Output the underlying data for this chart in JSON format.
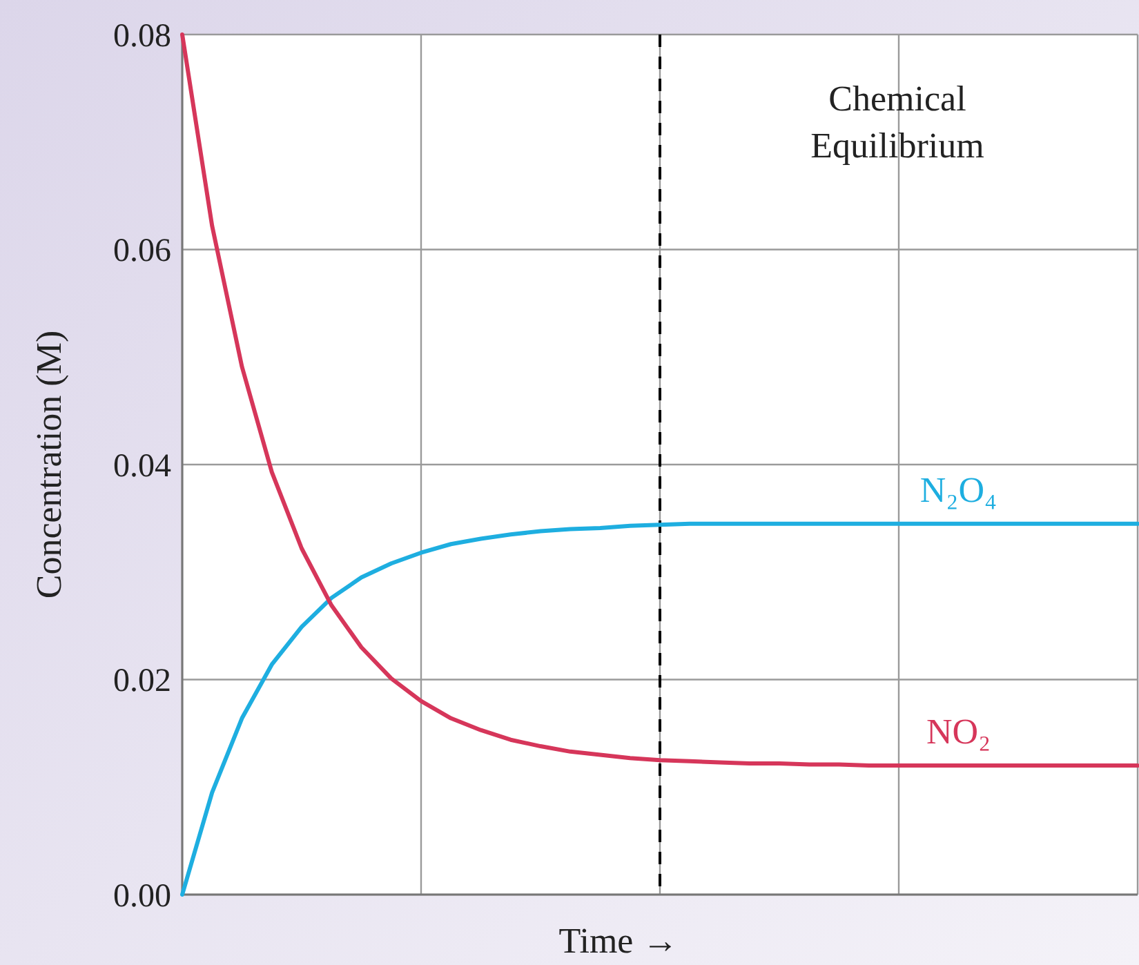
{
  "chart_data": {
    "type": "line",
    "xlabel": "Time →",
    "ylabel": "Concentration (M)",
    "categories": [
      null,
      null,
      null,
      null,
      null,
      null,
      null,
      null,
      null,
      null,
      null,
      null,
      null,
      null,
      null,
      null,
      null,
      null,
      null,
      null,
      null,
      null,
      null,
      null,
      null,
      null,
      null,
      null,
      null,
      null,
      null,
      null,
      null
    ],
    "ylim": [
      0,
      0.08
    ],
    "yticks": [
      {
        "value": 0,
        "label": "0.00"
      },
      {
        "value": 0.02,
        "label": "0.02"
      },
      {
        "value": 0.04,
        "label": "0.04"
      },
      {
        "value": 0.06,
        "label": "0.06"
      },
      {
        "value": 0.08,
        "label": "0.08"
      }
    ],
    "grid": true,
    "marker": "none",
    "line_style": "solid",
    "series": [
      {
        "name": "N₂O₄",
        "color": "#1eaee0",
        "values": [
          0,
          0.0095,
          0.0164,
          0.0214,
          0.0249,
          0.0276,
          0.0295,
          0.0308,
          0.0318,
          0.0326,
          0.0331,
          0.0335,
          0.0338,
          0.034,
          0.0341,
          0.0343,
          0.0344,
          0.0345,
          0.0345,
          0.0345,
          0.0345,
          0.0345,
          0.0345,
          0.0345,
          0.0345,
          0.0345,
          0.0345,
          0.0345,
          0.0345,
          0.0345,
          0.0345,
          0.0345,
          0.0345
        ]
      },
      {
        "name": "NO₂",
        "color": "#d6365a",
        "values": [
          0.08,
          0.0622,
          0.0491,
          0.0393,
          0.0322,
          0.0269,
          0.023,
          0.0201,
          0.018,
          0.0164,
          0.0153,
          0.0144,
          0.0138,
          0.0133,
          0.013,
          0.0127,
          0.0125,
          0.0124,
          0.0123,
          0.0122,
          0.0122,
          0.0121,
          0.0121,
          0.012,
          0.012,
          0.012,
          0.012,
          0.012,
          0.012,
          0.012,
          0.012,
          0.012,
          0.012
        ]
      }
    ],
    "annotations": [
      "Chemical Equilibrium"
    ]
  }
}
